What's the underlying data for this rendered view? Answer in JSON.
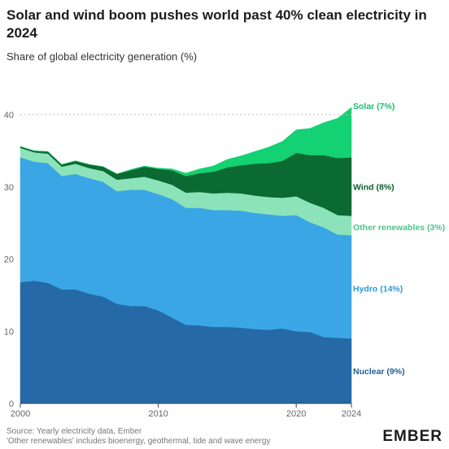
{
  "title": "Solar and wind boom pushes world past 40% clean electricity in 2024",
  "subtitle": "Share of global electricity generation (%)",
  "source": "Source: Yearly electricity data, Ember",
  "note": "'Other renewables' includes bioenergy, geothermal, tide and wave energy",
  "logo": "EMBER",
  "chart_data": {
    "type": "area",
    "stacked": true,
    "title": "Solar and wind boom pushes world past 40% clean electricity in 2024",
    "subtitle": "Share of global electricity generation (%)",
    "xlabel": "",
    "ylabel": "",
    "xlim": [
      2000,
      2024
    ],
    "ylim": [
      0,
      40
    ],
    "x_ticks": [
      "2000",
      "2010",
      "2020",
      "2024"
    ],
    "y_ticks": [
      "0",
      "10",
      "20",
      "30",
      "40"
    ],
    "grid": false,
    "reference_line": 40,
    "legend": "inline labels at right end",
    "x": [
      2000,
      2001,
      2002,
      2003,
      2004,
      2005,
      2006,
      2007,
      2008,
      2009,
      2010,
      2011,
      2012,
      2013,
      2014,
      2015,
      2016,
      2017,
      2018,
      2019,
      2020,
      2021,
      2022,
      2023,
      2024
    ],
    "series": [
      {
        "name": "Nuclear",
        "label": "Nuclear (9%)",
        "color": "#2569a6",
        "label_color": "#1f5e99",
        "values": [
          16.8,
          17.0,
          16.7,
          15.8,
          15.8,
          15.2,
          14.8,
          13.8,
          13.5,
          13.5,
          12.9,
          11.9,
          10.9,
          10.8,
          10.6,
          10.6,
          10.5,
          10.3,
          10.2,
          10.4,
          10.0,
          9.9,
          9.2,
          9.1,
          9.0
        ]
      },
      {
        "name": "Hydro",
        "label": "Hydro (14%)",
        "color": "#3aa6e5",
        "label_color": "#2b9ad9",
        "values": [
          17.3,
          16.5,
          16.6,
          15.7,
          16.0,
          16.0,
          15.9,
          15.6,
          16.1,
          16.1,
          16.1,
          16.4,
          16.2,
          16.3,
          16.2,
          16.2,
          16.2,
          16.1,
          16.0,
          15.6,
          16.1,
          15.2,
          15.2,
          14.3,
          14.3
        ]
      },
      {
        "name": "Other renewables",
        "label": "Other renewables (3%)",
        "color": "#8ce3b9",
        "label_color": "#4cc48a",
        "values": [
          1.3,
          1.3,
          1.3,
          1.3,
          1.4,
          1.4,
          1.5,
          1.6,
          1.6,
          1.8,
          1.9,
          2.0,
          2.1,
          2.2,
          2.3,
          2.4,
          2.4,
          2.4,
          2.4,
          2.5,
          2.6,
          2.7,
          2.7,
          2.7,
          2.7
        ]
      },
      {
        "name": "Wind",
        "label": "Wind (8%)",
        "color": "#0b6a32",
        "label_color": "#0b5e2c",
        "values": [
          0.2,
          0.2,
          0.3,
          0.3,
          0.4,
          0.5,
          0.6,
          0.8,
          1.1,
          1.4,
          1.6,
          2.0,
          2.3,
          2.6,
          3.0,
          3.5,
          3.9,
          4.4,
          4.7,
          5.1,
          6.0,
          6.6,
          7.3,
          7.9,
          8.1
        ]
      },
      {
        "name": "Solar",
        "label": "Solar (7%)",
        "color": "#14d173",
        "label_color": "#13c16a",
        "values": [
          0.0,
          0.0,
          0.0,
          0.0,
          0.0,
          0.0,
          0.0,
          0.0,
          0.1,
          0.1,
          0.1,
          0.2,
          0.4,
          0.6,
          0.8,
          1.1,
          1.3,
          1.7,
          2.2,
          2.7,
          3.2,
          3.7,
          4.5,
          5.5,
          6.9
        ]
      }
    ]
  }
}
